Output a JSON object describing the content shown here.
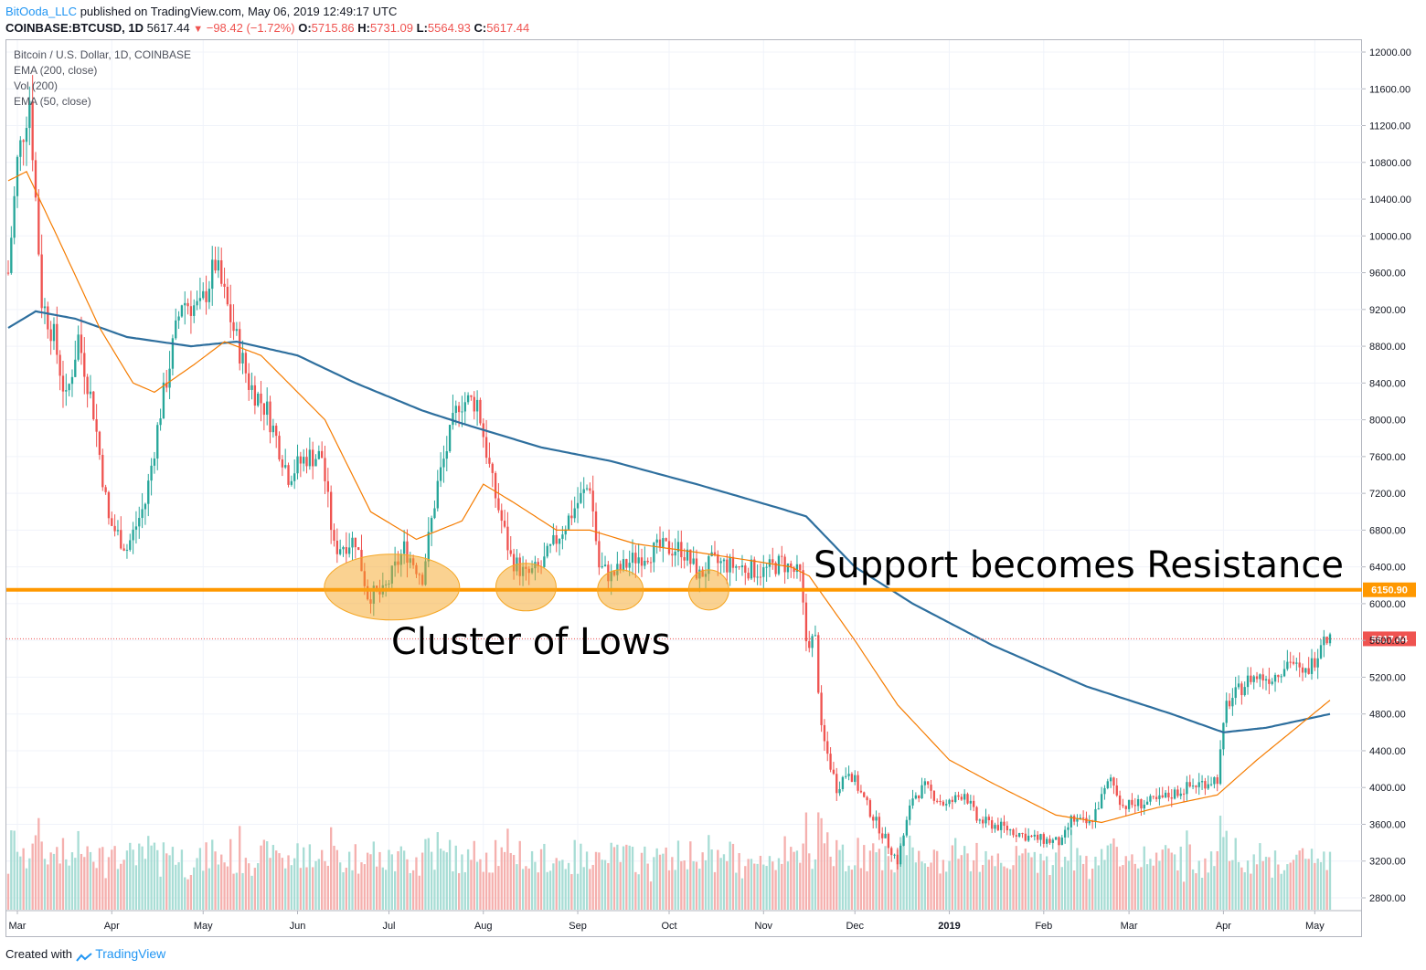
{
  "header": {
    "author": "BitOoda_LLC",
    "published_text": "published on TradingView.com, May 06, 2019 12:49:17 UTC",
    "symbol": "COINBASE:BTCUSD, 1D",
    "last": "5617.44",
    "change": "−98.42 (−1.72%)",
    "open_label": "O:",
    "open": "5715.86",
    "high_label": "H:",
    "high": "5731.09",
    "low_label": "L:",
    "low": "5564.93",
    "close_label": "C:",
    "close": "5617.44"
  },
  "legend": {
    "title": "Bitcoin / U.S. Dollar, 1D, COINBASE",
    "ema200": "EMA (200, close)",
    "vol": "Vol (200)",
    "ema50": "EMA (50, close)"
  },
  "annotations": {
    "resistance_text": "Support becomes Resistance",
    "cluster_text": "Cluster of Lows",
    "level_value": 6150.9,
    "level_label": "6150.90",
    "last_price_value": 5617.44,
    "last_price_label": "5617.44"
  },
  "footer": {
    "created_with": "Created with",
    "brand": "TradingView"
  },
  "colors": {
    "up": "#26a69a",
    "down": "#ef5350",
    "up_volume": "#9fd9d0",
    "down_volume": "#f4a7a5",
    "ema200": "#2e6f9e",
    "ema50": "#f57c00",
    "resistance_line": "#ff9800",
    "highlight": "#f5a623",
    "label_bg": "#ef5350",
    "level_label_bg": "#ff9800"
  },
  "chart_data": {
    "type": "candlestick",
    "y_axis": {
      "min": 2600,
      "max": 12200,
      "ticks": [
        2800,
        3200,
        3600,
        4000,
        4400,
        4800,
        5200,
        5600,
        6000,
        6400,
        6800,
        7200,
        7600,
        8000,
        8400,
        8800,
        9200,
        9600,
        10000,
        10400,
        10800,
        11200,
        11600,
        12000
      ],
      "tick_labels": [
        "2800.00",
        "3200.00",
        "3600.00",
        "4000.00",
        "4400.00",
        "4800.00",
        "5200.00",
        "5600.00",
        "6000.00",
        "6400.00",
        "6800.00",
        "7200.00",
        "7600.00",
        "8000.00",
        "8400.00",
        "8800.00",
        "9200.00",
        "9600.00",
        "10000.00",
        "10400.00",
        "10800.00",
        "11200.00",
        "11600.00",
        "12000.00"
      ]
    },
    "x_axis": {
      "start": "2018-02-26",
      "end": "2019-05-06",
      "ticks": [
        "2018-03-01",
        "2018-04-01",
        "2018-05-01",
        "2018-06-01",
        "2018-07-01",
        "2018-08-01",
        "2018-09-01",
        "2018-10-01",
        "2018-11-01",
        "2018-12-01",
        "2019-01-01",
        "2019-02-01",
        "2019-03-01",
        "2019-04-01",
        "2019-05-01"
      ],
      "tick_labels": [
        "Mar",
        "Apr",
        "May",
        "Jun",
        "Jul",
        "Aug",
        "Sep",
        "Oct",
        "Nov",
        "Dec",
        "2019",
        "Feb",
        "Mar",
        "Apr",
        "May"
      ]
    },
    "price_anchors": [
      [
        "2018-02-26",
        9600
      ],
      [
        "2018-03-01",
        10800
      ],
      [
        "2018-03-05",
        11500
      ],
      [
        "2018-03-09",
        9300
      ],
      [
        "2018-03-13",
        8900
      ],
      [
        "2018-03-17",
        8200
      ],
      [
        "2018-03-21",
        8900
      ],
      [
        "2018-03-26",
        8100
      ],
      [
        "2018-03-31",
        6900
      ],
      [
        "2018-04-06",
        6600
      ],
      [
        "2018-04-12",
        7100
      ],
      [
        "2018-04-17",
        8100
      ],
      [
        "2018-04-24",
        9300
      ],
      [
        "2018-04-30",
        9200
      ],
      [
        "2018-05-05",
        9700
      ],
      [
        "2018-05-10",
        9100
      ],
      [
        "2018-05-16",
        8400
      ],
      [
        "2018-05-22",
        8100
      ],
      [
        "2018-05-29",
        7400
      ],
      [
        "2018-06-04",
        7600
      ],
      [
        "2018-06-09",
        7600
      ],
      [
        "2018-06-13",
        6600
      ],
      [
        "2018-06-20",
        6700
      ],
      [
        "2018-06-24",
        6100
      ],
      [
        "2018-06-29",
        6100
      ],
      [
        "2018-07-06",
        6600
      ],
      [
        "2018-07-12",
        6300
      ],
      [
        "2018-07-17",
        7300
      ],
      [
        "2018-07-24",
        8200
      ],
      [
        "2018-07-30",
        8200
      ],
      [
        "2018-08-04",
        7300
      ],
      [
        "2018-08-10",
        6500
      ],
      [
        "2018-08-15",
        6300
      ],
      [
        "2018-08-20",
        6400
      ],
      [
        "2018-08-25",
        6700
      ],
      [
        "2018-09-01",
        7100
      ],
      [
        "2018-09-05",
        7300
      ],
      [
        "2018-09-08",
        6400
      ],
      [
        "2018-09-12",
        6300
      ],
      [
        "2018-09-20",
        6500
      ],
      [
        "2018-09-28",
        6600
      ],
      [
        "2018-10-05",
        6600
      ],
      [
        "2018-10-11",
        6300
      ],
      [
        "2018-10-15",
        6450
      ],
      [
        "2018-10-24",
        6400
      ],
      [
        "2018-11-01",
        6350
      ],
      [
        "2018-11-07",
        6450
      ],
      [
        "2018-11-13",
        6300
      ],
      [
        "2018-11-15",
        5600
      ],
      [
        "2018-11-18",
        5600
      ],
      [
        "2018-11-20",
        4600
      ],
      [
        "2018-11-25",
        4000
      ],
      [
        "2018-11-29",
        4200
      ],
      [
        "2018-12-05",
        3800
      ],
      [
        "2018-12-10",
        3500
      ],
      [
        "2018-12-15",
        3200
      ],
      [
        "2018-12-20",
        3900
      ],
      [
        "2018-12-24",
        4000
      ],
      [
        "2018-12-31",
        3800
      ],
      [
        "2019-01-06",
        3950
      ],
      [
        "2019-01-10",
        3650
      ],
      [
        "2019-01-20",
        3550
      ],
      [
        "2019-01-28",
        3450
      ],
      [
        "2019-02-07",
        3400
      ],
      [
        "2019-02-10",
        3650
      ],
      [
        "2019-02-16",
        3600
      ],
      [
        "2019-02-23",
        4100
      ],
      [
        "2019-02-27",
        3800
      ],
      [
        "2019-03-10",
        3850
      ],
      [
        "2019-03-20",
        4000
      ],
      [
        "2019-03-30",
        4100
      ],
      [
        "2019-04-02",
        4900
      ],
      [
        "2019-04-10",
        5200
      ],
      [
        "2019-04-17",
        5200
      ],
      [
        "2019-04-23",
        5400
      ],
      [
        "2019-04-27",
        5200
      ],
      [
        "2019-05-01",
        5400
      ],
      [
        "2019-05-04",
        5700
      ],
      [
        "2019-05-06",
        5617.44
      ]
    ],
    "ema200_anchors": [
      [
        "2018-02-26",
        9000
      ],
      [
        "2018-03-07",
        9180
      ],
      [
        "2018-03-20",
        9100
      ],
      [
        "2018-04-06",
        8900
      ],
      [
        "2018-04-27",
        8800
      ],
      [
        "2018-05-12",
        8850
      ],
      [
        "2018-06-01",
        8700
      ],
      [
        "2018-06-20",
        8400
      ],
      [
        "2018-07-12",
        8100
      ],
      [
        "2018-07-26",
        7950
      ],
      [
        "2018-08-20",
        7700
      ],
      [
        "2018-09-12",
        7550
      ],
      [
        "2018-10-10",
        7300
      ],
      [
        "2018-11-05",
        7050
      ],
      [
        "2018-11-15",
        6950
      ],
      [
        "2018-12-01",
        6400
      ],
      [
        "2018-12-20",
        6000
      ],
      [
        "2019-01-15",
        5550
      ],
      [
        "2019-02-15",
        5100
      ],
      [
        "2019-03-15",
        4800
      ],
      [
        "2019-04-01",
        4600
      ],
      [
        "2019-04-15",
        4650
      ],
      [
        "2019-05-06",
        4800
      ]
    ],
    "ema50_anchors": [
      [
        "2018-02-26",
        10600
      ],
      [
        "2018-03-04",
        10700
      ],
      [
        "2018-03-14",
        10000
      ],
      [
        "2018-03-28",
        9000
      ],
      [
        "2018-04-08",
        8400
      ],
      [
        "2018-04-15",
        8300
      ],
      [
        "2018-04-28",
        8600
      ],
      [
        "2018-05-08",
        8850
      ],
      [
        "2018-05-20",
        8700
      ],
      [
        "2018-06-10",
        8000
      ],
      [
        "2018-06-25",
        7000
      ],
      [
        "2018-07-10",
        6700
      ],
      [
        "2018-07-25",
        6900
      ],
      [
        "2018-08-01",
        7300
      ],
      [
        "2018-08-11",
        7100
      ],
      [
        "2018-08-25",
        6800
      ],
      [
        "2018-09-05",
        6800
      ],
      [
        "2018-09-20",
        6650
      ],
      [
        "2018-10-12",
        6550
      ],
      [
        "2018-11-10",
        6400
      ],
      [
        "2018-11-16",
        6300
      ],
      [
        "2018-12-01",
        5600
      ],
      [
        "2018-12-15",
        4900
      ],
      [
        "2019-01-01",
        4300
      ],
      [
        "2019-01-15",
        4050
      ],
      [
        "2019-02-05",
        3700
      ],
      [
        "2019-02-20",
        3620
      ],
      [
        "2019-03-10",
        3780
      ],
      [
        "2019-03-30",
        3920
      ],
      [
        "2019-04-12",
        4300
      ],
      [
        "2019-05-06",
        4950
      ]
    ],
    "volume": {
      "max_display": 4200,
      "baseline": 2600
    }
  }
}
